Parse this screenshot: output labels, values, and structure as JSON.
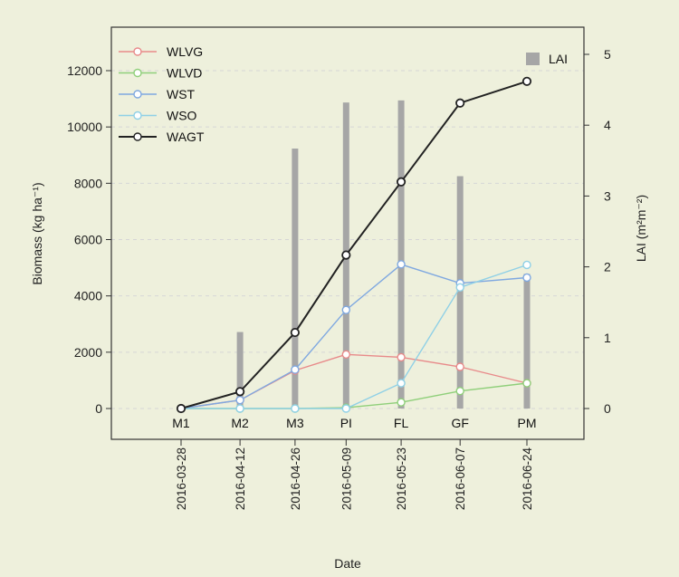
{
  "chart_data": {
    "type": "line",
    "title": "",
    "xlabel": "Date",
    "ylabel_left": "Biomass (kg ha⁻¹)",
    "ylabel_right": "LAI (m²m⁻²)",
    "ylim_left": [
      0,
      12000
    ],
    "yticks_left": [
      0,
      2000,
      4000,
      6000,
      8000,
      10000,
      12000
    ],
    "ylim_right": [
      0,
      5
    ],
    "yticks_right": [
      0,
      1,
      2,
      3,
      4,
      5
    ],
    "x_dates": [
      "2016-03-28",
      "2016-04-12",
      "2016-04-26",
      "2016-05-09",
      "2016-05-23",
      "2016-06-07",
      "2016-06-24"
    ],
    "stage_labels": [
      "M1",
      "M2",
      "M3",
      "PI",
      "FL",
      "GF",
      "PM"
    ],
    "series": [
      {
        "name": "WLVG",
        "color": "#e88a8a",
        "values": [
          0,
          300,
          1350,
          1920,
          1820,
          1480,
          900
        ]
      },
      {
        "name": "WLVD",
        "color": "#8fcf7a",
        "values": [
          0,
          0,
          0,
          30,
          220,
          620,
          900
        ]
      },
      {
        "name": "WST",
        "color": "#7fa8e0",
        "values": [
          0,
          300,
          1380,
          3500,
          5120,
          4450,
          4650
        ]
      },
      {
        "name": "WSO",
        "color": "#8fd0e6",
        "values": [
          0,
          0,
          0,
          0,
          900,
          4300,
          5100
        ]
      },
      {
        "name": "WAGT",
        "color": "#222222",
        "values": [
          0,
          600,
          2700,
          5450,
          8050,
          10850,
          11620
        ]
      }
    ],
    "bars": {
      "name": "LAI",
      "color": "#a6a6a6",
      "values": [
        0.05,
        1.08,
        3.67,
        4.32,
        4.35,
        3.28,
        1.9
      ]
    },
    "legend_lines_position": "top-left",
    "legend_bars_position": "top-right",
    "grid": "horizontal-dashed"
  }
}
